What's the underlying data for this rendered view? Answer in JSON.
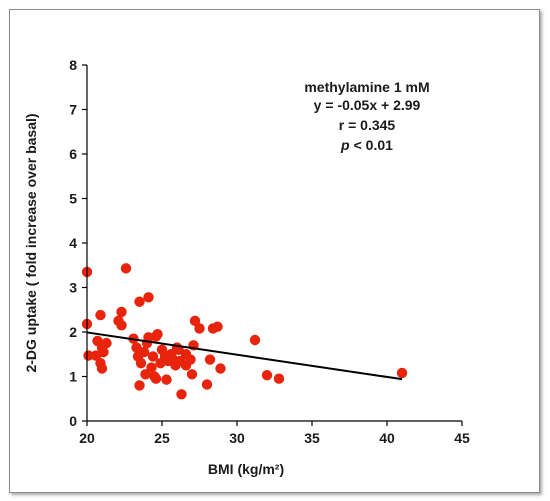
{
  "chart_data": {
    "type": "scatter",
    "xlabel": "BMI (kg/m²)",
    "ylabel": "2-DG uptake ( fold increase over basal)",
    "xlim": [
      20,
      45
    ],
    "ylim": [
      0,
      8
    ],
    "xticks": [
      20,
      25,
      30,
      35,
      40,
      45
    ],
    "yticks": [
      0,
      1,
      2,
      3,
      4,
      5,
      6,
      7,
      8
    ],
    "annotations": [
      "methylamine 1 mM",
      "y = -0.05x + 2.99",
      "r = 0.345",
      "< 0.01"
    ],
    "annotation_p": "p",
    "point_color": "#e8240c",
    "trendline": {
      "slope": -0.05,
      "intercept": 2.99,
      "x_start": 20,
      "x_end": 41
    },
    "points": [
      {
        "x": 20.0,
        "y": 3.35
      },
      {
        "x": 20.0,
        "y": 2.18
      },
      {
        "x": 20.1,
        "y": 1.47
      },
      {
        "x": 20.6,
        "y": 1.47
      },
      {
        "x": 20.7,
        "y": 1.8
      },
      {
        "x": 20.9,
        "y": 1.3
      },
      {
        "x": 21.0,
        "y": 1.18
      },
      {
        "x": 20.9,
        "y": 2.38
      },
      {
        "x": 21.1,
        "y": 1.55
      },
      {
        "x": 21.3,
        "y": 1.75
      },
      {
        "x": 21.0,
        "y": 1.65
      },
      {
        "x": 22.1,
        "y": 2.25
      },
      {
        "x": 22.3,
        "y": 2.15
      },
      {
        "x": 22.3,
        "y": 2.45
      },
      {
        "x": 22.6,
        "y": 3.43
      },
      {
        "x": 23.1,
        "y": 1.85
      },
      {
        "x": 23.3,
        "y": 1.65
      },
      {
        "x": 23.4,
        "y": 1.45
      },
      {
        "x": 23.5,
        "y": 2.68
      },
      {
        "x": 23.5,
        "y": 0.8
      },
      {
        "x": 23.6,
        "y": 1.3
      },
      {
        "x": 23.8,
        "y": 1.55
      },
      {
        "x": 23.9,
        "y": 1.05
      },
      {
        "x": 24.0,
        "y": 1.75
      },
      {
        "x": 24.1,
        "y": 2.78
      },
      {
        "x": 24.1,
        "y": 1.88
      },
      {
        "x": 24.3,
        "y": 1.2
      },
      {
        "x": 24.4,
        "y": 1.45
      },
      {
        "x": 24.5,
        "y": 1.0
      },
      {
        "x": 24.6,
        "y": 1.9
      },
      {
        "x": 24.7,
        "y": 1.95
      },
      {
        "x": 24.6,
        "y": 0.95
      },
      {
        "x": 24.9,
        "y": 1.3
      },
      {
        "x": 25.0,
        "y": 1.6
      },
      {
        "x": 25.2,
        "y": 1.45
      },
      {
        "x": 25.3,
        "y": 0.93
      },
      {
        "x": 25.4,
        "y": 1.35
      },
      {
        "x": 25.6,
        "y": 1.5
      },
      {
        "x": 25.7,
        "y": 1.4
      },
      {
        "x": 25.9,
        "y": 1.25
      },
      {
        "x": 26.0,
        "y": 1.65
      },
      {
        "x": 26.1,
        "y": 1.6
      },
      {
        "x": 26.2,
        "y": 1.35
      },
      {
        "x": 26.3,
        "y": 0.6
      },
      {
        "x": 26.6,
        "y": 1.5
      },
      {
        "x": 26.6,
        "y": 1.25
      },
      {
        "x": 26.9,
        "y": 1.38
      },
      {
        "x": 27.0,
        "y": 1.05
      },
      {
        "x": 27.1,
        "y": 1.7
      },
      {
        "x": 27.2,
        "y": 2.25
      },
      {
        "x": 27.5,
        "y": 2.08
      },
      {
        "x": 28.0,
        "y": 0.82
      },
      {
        "x": 28.2,
        "y": 1.38
      },
      {
        "x": 28.4,
        "y": 2.08
      },
      {
        "x": 28.7,
        "y": 2.12
      },
      {
        "x": 28.9,
        "y": 1.18
      },
      {
        "x": 31.2,
        "y": 1.82
      },
      {
        "x": 32.0,
        "y": 1.03
      },
      {
        "x": 32.8,
        "y": 0.95
      },
      {
        "x": 41.0,
        "y": 1.08
      }
    ]
  }
}
